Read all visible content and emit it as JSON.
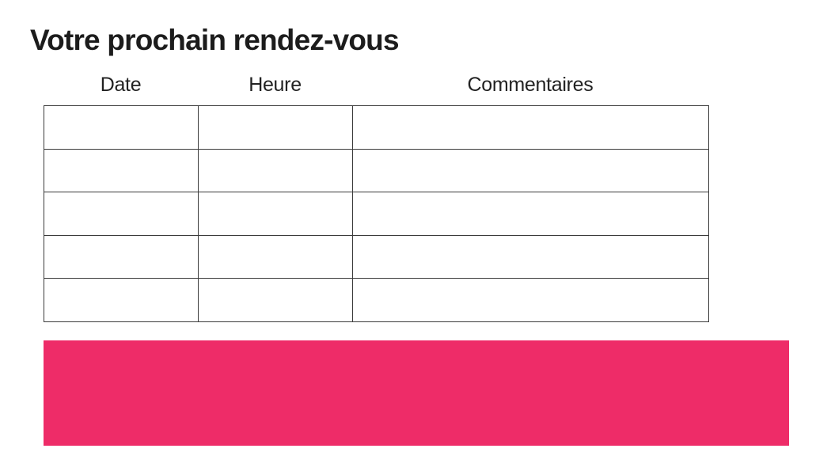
{
  "page": {
    "background_color": "#ffffff"
  },
  "title": "Votre prochain rendez-vous",
  "table": {
    "columns": [
      {
        "label": "Date"
      },
      {
        "label": "Heure"
      },
      {
        "label": "Commentaires"
      }
    ],
    "rows": [
      {
        "date": "",
        "heure": "",
        "commentaires": ""
      },
      {
        "date": "",
        "heure": "",
        "commentaires": ""
      },
      {
        "date": "",
        "heure": "",
        "commentaires": ""
      },
      {
        "date": "",
        "heure": "",
        "commentaires": ""
      },
      {
        "date": "",
        "heure": "",
        "commentaires": ""
      }
    ],
    "border_color": "#3b3b3b"
  },
  "banner": {
    "text": "",
    "color": "#ee2c68"
  }
}
